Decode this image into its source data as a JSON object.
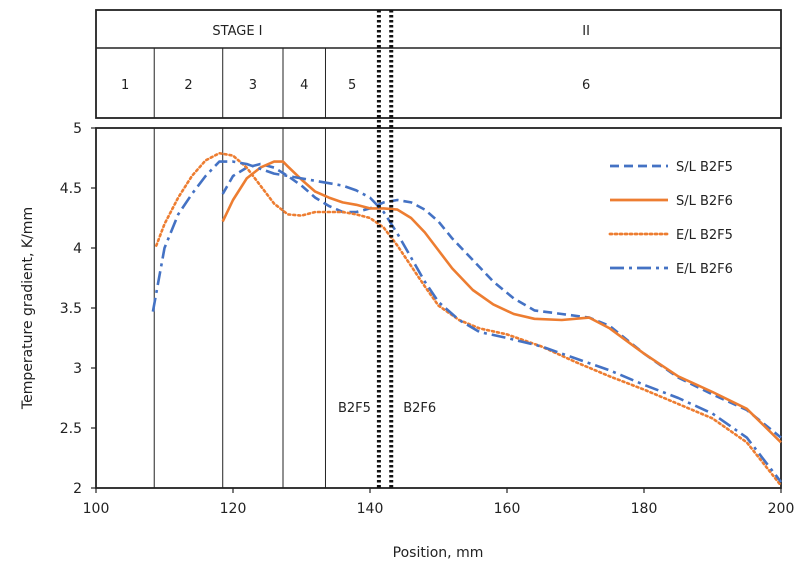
{
  "chart_data": {
    "type": "line",
    "xlabel": "Position, mm",
    "ylabel": "Temperature gradient, K/mm",
    "xlim": [
      100,
      200
    ],
    "ylim": [
      2,
      5
    ],
    "xticks": [
      100,
      120,
      140,
      160,
      180,
      200
    ],
    "yticks": [
      2,
      2.5,
      3,
      3.5,
      4,
      4.5,
      5
    ],
    "legend_position": "top-right",
    "grid": false,
    "stages": [
      {
        "label": "STAGE I",
        "x_start": 100,
        "x_end": 141.3
      },
      {
        "label": "II",
        "x_start": 143.1,
        "x_end": 200
      }
    ],
    "zones": [
      {
        "label": "1",
        "x_start": 100,
        "x_end": 108.5
      },
      {
        "label": "2",
        "x_start": 108.5,
        "x_end": 118.5
      },
      {
        "label": "3",
        "x_start": 118.5,
        "x_end": 127.3
      },
      {
        "label": "4",
        "x_start": 127.3,
        "x_end": 133.5
      },
      {
        "label": "5",
        "x_start": 133.5,
        "x_end": 141.3
      },
      {
        "label": "6",
        "x_start": 143.1,
        "x_end": 200
      }
    ],
    "zone_lines": [
      108.5,
      118.5,
      127.3,
      133.5
    ],
    "boundaries": [
      {
        "label": "B2F5",
        "x": 141.3
      },
      {
        "label": "B2F6",
        "x": 143.1
      }
    ],
    "series": [
      {
        "name": "S/L B2F5",
        "color": "#4472c4",
        "dash": "dashed",
        "x": [
          118.5,
          120,
          122,
          124,
          126,
          128,
          130,
          132,
          134,
          136,
          138,
          140,
          142,
          144,
          146,
          148,
          150,
          152,
          155,
          158,
          161,
          164,
          168,
          172,
          175,
          180,
          185,
          190,
          195,
          200
        ],
        "y": [
          4.45,
          4.6,
          4.67,
          4.7,
          4.67,
          4.6,
          4.52,
          4.42,
          4.35,
          4.3,
          4.3,
          4.33,
          4.38,
          4.4,
          4.38,
          4.32,
          4.22,
          4.08,
          3.9,
          3.72,
          3.58,
          3.48,
          3.45,
          3.42,
          3.35,
          3.12,
          2.92,
          2.78,
          2.65,
          2.42
        ]
      },
      {
        "name": "S/L B2F6",
        "color": "#ed7d31",
        "dash": "solid",
        "x": [
          118.5,
          120,
          122,
          124,
          126,
          127.3,
          128,
          130,
          132,
          134,
          136,
          138,
          140,
          142,
          144,
          146,
          148,
          150,
          152,
          155,
          158,
          161,
          164,
          168,
          172,
          175,
          180,
          185,
          190,
          195,
          200
        ],
        "y": [
          4.22,
          4.4,
          4.58,
          4.67,
          4.72,
          4.72,
          4.68,
          4.57,
          4.47,
          4.42,
          4.38,
          4.36,
          4.33,
          4.33,
          4.32,
          4.25,
          4.13,
          3.98,
          3.83,
          3.65,
          3.53,
          3.45,
          3.41,
          3.4,
          3.42,
          3.33,
          3.12,
          2.93,
          2.8,
          2.66,
          2.38
        ]
      },
      {
        "name": "E/L B2F5",
        "color": "#ed7d31",
        "dash": "dotted",
        "x": [
          108.8,
          110,
          112,
          114,
          116,
          118,
          120,
          122,
          124,
          126,
          128,
          130,
          132,
          134,
          136,
          138,
          140,
          142,
          144,
          146,
          148,
          150,
          153,
          156,
          160,
          165,
          170,
          175,
          180,
          185,
          190,
          195,
          200
        ],
        "y": [
          4.02,
          4.2,
          4.42,
          4.6,
          4.73,
          4.79,
          4.77,
          4.67,
          4.52,
          4.37,
          4.28,
          4.27,
          4.3,
          4.3,
          4.3,
          4.28,
          4.25,
          4.17,
          4.02,
          3.85,
          3.68,
          3.52,
          3.4,
          3.33,
          3.28,
          3.18,
          3.05,
          2.93,
          2.82,
          2.7,
          2.58,
          2.38,
          2.02
        ]
      },
      {
        "name": "E/L B2F6",
        "color": "#4472c4",
        "dash": "dashdot",
        "x": [
          108.3,
          110,
          112,
          114,
          116,
          118,
          120,
          122,
          124,
          126,
          128,
          130,
          132,
          134,
          136,
          138,
          140,
          142,
          144,
          146,
          148,
          150,
          153,
          156,
          160,
          165,
          170,
          175,
          180,
          185,
          190,
          195,
          200
        ],
        "y": [
          3.47,
          4.0,
          4.28,
          4.45,
          4.6,
          4.72,
          4.72,
          4.7,
          4.66,
          4.62,
          4.6,
          4.58,
          4.56,
          4.54,
          4.52,
          4.48,
          4.42,
          4.3,
          4.12,
          3.92,
          3.72,
          3.55,
          3.4,
          3.3,
          3.25,
          3.18,
          3.08,
          2.98,
          2.86,
          2.75,
          2.62,
          2.42,
          2.05
        ]
      }
    ]
  }
}
